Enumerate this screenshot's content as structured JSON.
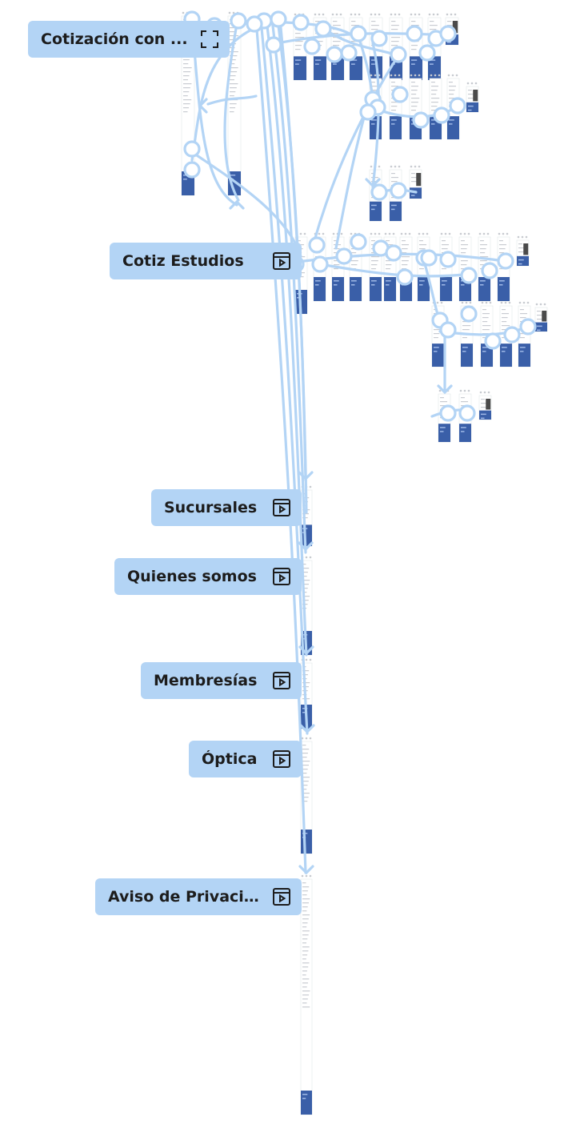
{
  "flows": [
    {
      "id": "cotizacion-con",
      "label": "Cotización con ...",
      "icon": "expand-icon"
    },
    {
      "id": "cotiz-estudios",
      "label": "Cotiz  Estudios",
      "icon": "prototype-play-icon"
    },
    {
      "id": "sucursales",
      "label": "Sucursales",
      "icon": "prototype-play-icon"
    },
    {
      "id": "quienes-somos",
      "label": "Quienes somos",
      "icon": "prototype-play-icon"
    },
    {
      "id": "membresias",
      "label": "Membresías",
      "icon": "prototype-play-icon"
    },
    {
      "id": "optica",
      "label": "Óptica",
      "icon": "prototype-play-icon"
    },
    {
      "id": "aviso-privacidad",
      "label": "Aviso de Privaci...",
      "icon": "prototype-play-icon"
    }
  ],
  "colors": {
    "connector": "#b3d4f5",
    "label_bg": "#b3d4f5",
    "frame_footer": "#3a5fa8",
    "frame_border": "#e3e6ea",
    "frame_dots": "#c8cbd0"
  }
}
